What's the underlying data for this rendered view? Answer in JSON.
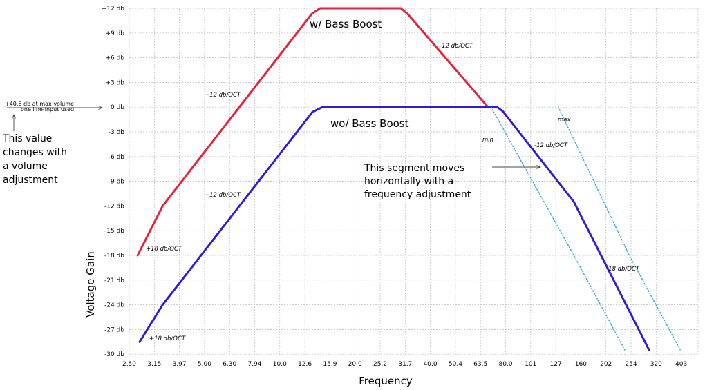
{
  "chart_data": {
    "type": "line",
    "xlabel": "Frequency",
    "ylabel": "Voltage Gain",
    "x_scale": "log",
    "x_ticks": [
      "2.50",
      "3.15",
      "3.97",
      "5.00",
      "6.30",
      "7.94",
      "10.0",
      "12.6",
      "15.9",
      "20.0",
      "25.2",
      "31.7",
      "40.0",
      "50.4",
      "63.5",
      "80.0",
      "101",
      "127",
      "160",
      "202",
      "254",
      "320",
      "403"
    ],
    "y_ticks": [
      "+12 db",
      "+9 db",
      "+6 db",
      "+3 db",
      "0 db",
      "-3 db",
      "-6 db",
      "-9 db",
      "-12 db",
      "-15 db",
      "-18 db",
      "-21 db",
      "-24 db",
      "-27 db",
      "-30 db"
    ],
    "ylim": [
      -30,
      12
    ],
    "grid": true,
    "series": [
      {
        "name": "w/ Bass Boost",
        "color": "#e8203a",
        "points": [
          [
            2.7,
            -18
          ],
          [
            3.4,
            -12
          ],
          [
            13.4,
            11.3
          ],
          [
            14.5,
            12
          ],
          [
            30.5,
            12
          ],
          [
            32.5,
            11.3
          ],
          [
            68,
            0
          ]
        ]
      },
      {
        "name": "wo/ Bass Boost",
        "color": "#3a16d8",
        "points": [
          [
            2.75,
            -28.5
          ],
          [
            3.4,
            -24
          ],
          [
            13.5,
            -0.6
          ],
          [
            14.8,
            0
          ],
          [
            74,
            0
          ],
          [
            78,
            -0.5
          ],
          [
            150,
            -11.5
          ],
          [
            300,
            -29.5
          ]
        ]
      },
      {
        "name": "min",
        "color": "#2aa6d8",
        "style": "dotted",
        "points": [
          [
            70,
            0
          ],
          [
            150,
            -18
          ],
          [
            240,
            -29.5
          ]
        ]
      },
      {
        "name": "max",
        "color": "#2aa6d8",
        "style": "dotted",
        "points": [
          [
            130,
            0
          ],
          [
            250,
            -18
          ],
          [
            400,
            -29.5
          ]
        ]
      }
    ],
    "annotations": {
      "wbb_label": "w/ Bass Boost",
      "wobb_label": "wo/ Bass Boost",
      "red_rise": "+12 db/OCT",
      "red_fall": "-12 db/OCT",
      "red_low": "+18 db/OCT",
      "blue_rise": "+12 db/OCT",
      "blue_low": "+18 db/OCT",
      "blue_fall1": "-12 db/OCT",
      "blue_fall2": "-18 db/OCT",
      "min": "min",
      "max": "max",
      "ref_line1": "+40.6 db at max volume",
      "ref_line2": "one line-input used",
      "volume_note": [
        "This value",
        "changes with",
        "a volume",
        "adjustment"
      ],
      "segment_note": [
        "This segment moves",
        "horizontally with a",
        "frequency adjustment"
      ]
    }
  }
}
